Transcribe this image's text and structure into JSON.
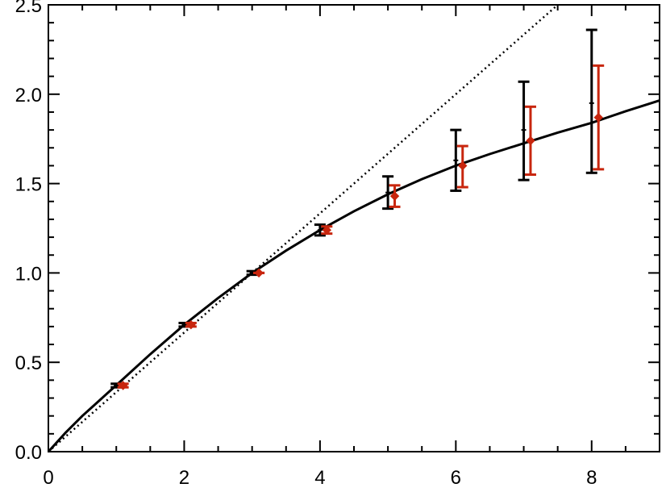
{
  "chart_data": {
    "type": "scatter",
    "title": "",
    "xlabel": "",
    "ylabel": "",
    "xlim": [
      0,
      9
    ],
    "ylim": [
      0,
      2.5
    ],
    "grid": false,
    "x_ticks": [
      0,
      2,
      4,
      6,
      8
    ],
    "x_tick_labels": [
      "0",
      "2",
      "4",
      "6",
      "8"
    ],
    "y_ticks": [
      0,
      0.5,
      1.0,
      1.5,
      2.0,
      2.5
    ],
    "y_tick_labels": [
      "0.0",
      "0.5",
      "1.0",
      "1.5",
      "2.0",
      "2.5"
    ],
    "colors": {
      "black_series": "#000000",
      "red_series": "#c8260e",
      "axes": "#000000"
    },
    "series": [
      {
        "marker": "dot-with-errorbar",
        "color": "#000000",
        "points": [
          {
            "x": 1,
            "y": 0.37,
            "ylow": 0.36,
            "yhigh": 0.38
          },
          {
            "x": 2,
            "y": 0.71,
            "ylow": 0.7,
            "yhigh": 0.72
          },
          {
            "x": 3,
            "y": 1.0,
            "ylow": 0.99,
            "yhigh": 1.01
          },
          {
            "x": 4,
            "y": 1.24,
            "ylow": 1.21,
            "yhigh": 1.27
          },
          {
            "x": 5,
            "y": 1.45,
            "ylow": 1.36,
            "yhigh": 1.54
          },
          {
            "x": 6,
            "y": 1.63,
            "ylow": 1.46,
            "yhigh": 1.8
          },
          {
            "x": 7,
            "y": 1.8,
            "ylow": 1.52,
            "yhigh": 2.07
          },
          {
            "x": 8,
            "y": 1.95,
            "ylow": 1.56,
            "yhigh": 2.36
          }
        ]
      },
      {
        "marker": "diamond-with-errorbar",
        "color": "#c8260e",
        "points": [
          {
            "x": 1.1,
            "y": 0.37,
            "ylow": 0.36,
            "yhigh": 0.38
          },
          {
            "x": 2.1,
            "y": 0.71,
            "ylow": 0.7,
            "yhigh": 0.72
          },
          {
            "x": 3.1,
            "y": 1.0,
            "ylow": 1.0,
            "yhigh": 1.0
          },
          {
            "x": 4.1,
            "y": 1.24,
            "ylow": 1.22,
            "yhigh": 1.26
          },
          {
            "x": 5.1,
            "y": 1.43,
            "ylow": 1.37,
            "yhigh": 1.49
          },
          {
            "x": 6.1,
            "y": 1.6,
            "ylow": 1.48,
            "yhigh": 1.71
          },
          {
            "x": 7.1,
            "y": 1.74,
            "ylow": 1.55,
            "yhigh": 1.93
          },
          {
            "x": 8.1,
            "y": 1.87,
            "ylow": 1.58,
            "yhigh": 2.16
          }
        ]
      }
    ],
    "curves": [
      {
        "style": "solid",
        "color": "#000000",
        "x": [
          0,
          0.25,
          0.5,
          0.75,
          1,
          1.5,
          2,
          2.5,
          3,
          3.5,
          4,
          4.5,
          5,
          5.5,
          6,
          6.5,
          7,
          7.5,
          8,
          8.5,
          9
        ],
        "y": [
          0,
          0.105,
          0.2,
          0.286,
          0.372,
          0.545,
          0.71,
          0.86,
          1.0,
          1.125,
          1.24,
          1.345,
          1.44,
          1.525,
          1.6,
          1.665,
          1.725,
          1.785,
          1.84,
          1.905,
          1.965
        ]
      },
      {
        "style": "dotted",
        "color": "#000000",
        "x": [
          0,
          7.5
        ],
        "y": [
          0,
          2.5
        ]
      }
    ]
  }
}
